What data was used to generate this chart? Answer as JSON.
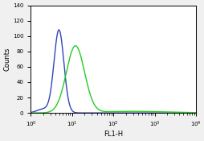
{
  "title": "",
  "xlabel": "FL1-H",
  "ylabel": "Counts",
  "xlim_log": [
    1,
    10000
  ],
  "ylim": [
    0,
    140
  ],
  "yticks": [
    0,
    20,
    40,
    60,
    80,
    100,
    120,
    140
  ],
  "xtick_positions": [
    1,
    10,
    100,
    1000,
    10000
  ],
  "blue_color": "#3344bb",
  "green_color": "#22cc22",
  "background_color": "#f0f0f0",
  "blue_peak_log_mean": 0.68,
  "blue_peak_log_sigma": 0.12,
  "blue_peak_height": 108,
  "green_peak_log_mean": 1.08,
  "green_peak_log_sigma": 0.22,
  "green_peak_height": 87,
  "linewidth": 1.0
}
